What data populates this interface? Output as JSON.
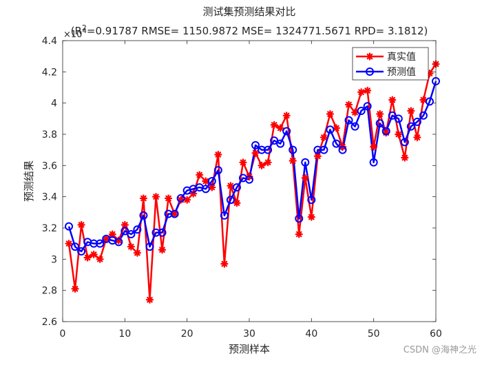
{
  "chart_data": {
    "type": "line",
    "title": "测试集预测结果对比",
    "subtitle": "(R",
    "subtitle_sup": "2",
    "subtitle_rest": "=0.91787 RMSE= 1150.9872 MSE= 1324771.5671 RPD= 3.1812)",
    "exponent_label": "×10",
    "exponent_power": "4",
    "xlabel": "预测样本",
    "ylabel": "预测结果",
    "xlim": [
      0,
      60
    ],
    "ylim": [
      2.6,
      4.4
    ],
    "xticks": [
      0,
      10,
      20,
      30,
      40,
      50,
      60
    ],
    "yticks": [
      2.6,
      2.8,
      3.0,
      3.2,
      3.4,
      3.6,
      3.8,
      4.0,
      4.2,
      4.4
    ],
    "ytick_labels": [
      "2.6",
      "2.8",
      "3",
      "3.2",
      "3.4",
      "3.6",
      "3.8",
      "4",
      "4.2",
      "4.4"
    ],
    "grid": false,
    "legend_position": "top-right",
    "x": [
      1,
      2,
      3,
      4,
      5,
      6,
      7,
      8,
      9,
      10,
      11,
      12,
      13,
      14,
      15,
      16,
      17,
      18,
      19,
      20,
      21,
      22,
      23,
      24,
      25,
      26,
      27,
      28,
      29,
      30,
      31,
      32,
      33,
      34,
      35,
      36,
      37,
      38,
      39,
      40,
      41,
      42,
      43,
      44,
      45,
      46,
      47,
      48,
      49,
      50,
      51,
      52,
      53,
      54,
      55,
      56,
      57,
      58,
      59,
      60
    ],
    "series": [
      {
        "name": "真实值",
        "color": "#ff0000",
        "marker": "asterisk",
        "values": [
          3.1,
          2.81,
          3.22,
          3.01,
          3.03,
          3.0,
          3.13,
          3.16,
          3.12,
          3.22,
          3.08,
          3.04,
          3.39,
          2.74,
          3.4,
          3.06,
          3.39,
          3.29,
          3.38,
          3.38,
          3.42,
          3.54,
          3.5,
          3.46,
          3.67,
          2.97,
          3.47,
          3.36,
          3.62,
          3.53,
          3.68,
          3.6,
          3.62,
          3.86,
          3.84,
          3.92,
          3.63,
          3.16,
          3.52,
          3.27,
          3.66,
          3.78,
          3.93,
          3.84,
          3.72,
          3.99,
          3.94,
          4.07,
          4.08,
          3.72,
          3.93,
          3.81,
          4.02,
          3.8,
          3.65,
          3.95,
          3.78,
          4.02,
          4.19,
          4.25
        ]
      },
      {
        "name": "预测值",
        "color": "#0000ff",
        "marker": "circle",
        "values": [
          3.21,
          3.08,
          3.05,
          3.11,
          3.1,
          3.1,
          3.13,
          3.12,
          3.11,
          3.18,
          3.16,
          3.19,
          3.28,
          3.08,
          3.17,
          3.17,
          3.29,
          3.29,
          3.39,
          3.44,
          3.45,
          3.46,
          3.45,
          3.5,
          3.57,
          3.28,
          3.38,
          3.46,
          3.52,
          3.51,
          3.73,
          3.7,
          3.7,
          3.76,
          3.74,
          3.82,
          3.7,
          3.26,
          3.62,
          3.38,
          3.7,
          3.7,
          3.83,
          3.74,
          3.7,
          3.89,
          3.85,
          3.95,
          3.98,
          3.62,
          3.87,
          3.82,
          3.92,
          3.9,
          3.75,
          3.85,
          3.88,
          3.92,
          4.01,
          4.14
        ]
      }
    ]
  },
  "watermark": "CSDN @海神之光"
}
